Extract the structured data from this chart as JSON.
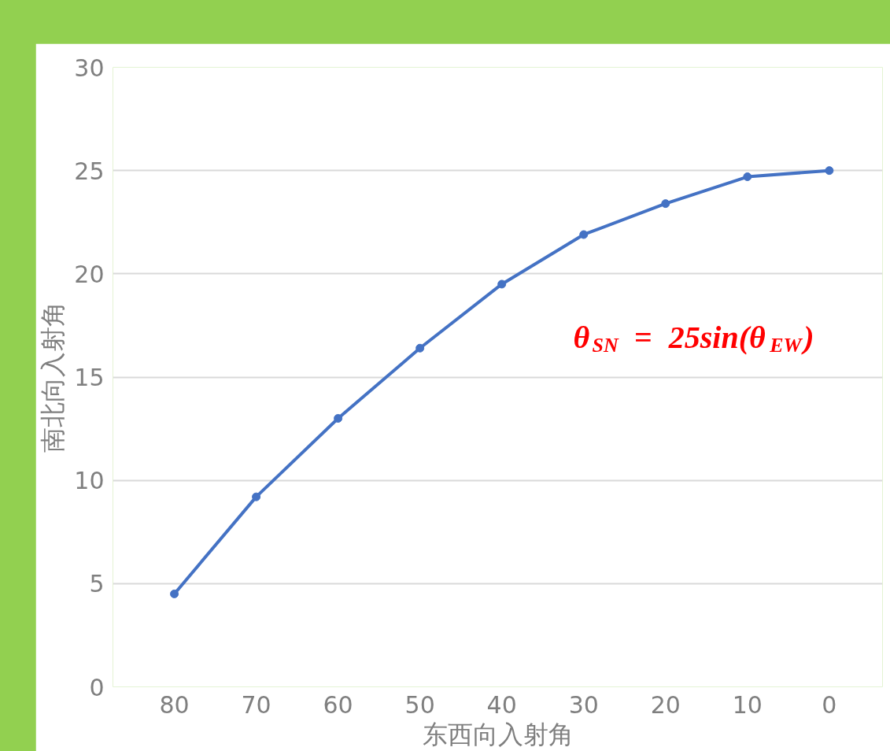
{
  "chart_data": {
    "type": "line",
    "categories": [
      "80",
      "70",
      "60",
      "50",
      "40",
      "30",
      "20",
      "10",
      "0"
    ],
    "series": [
      {
        "color": "#4472c4",
        "values": [
          4.5,
          9.2,
          13.0,
          16.4,
          19.5,
          21.9,
          23.4,
          24.7,
          25.0
        ]
      }
    ],
    "xlabel": "东西向入射角",
    "ylabel": "南北向入射角",
    "ylim": [
      0,
      30
    ],
    "yticks": [
      0,
      5,
      10,
      15,
      20,
      25,
      30
    ],
    "grid": "y",
    "marker": "circle",
    "line_style": "solid",
    "annotations": [
      "θ$_{SN}$ = 25sin(θ$_{EW}$)"
    ]
  }
}
